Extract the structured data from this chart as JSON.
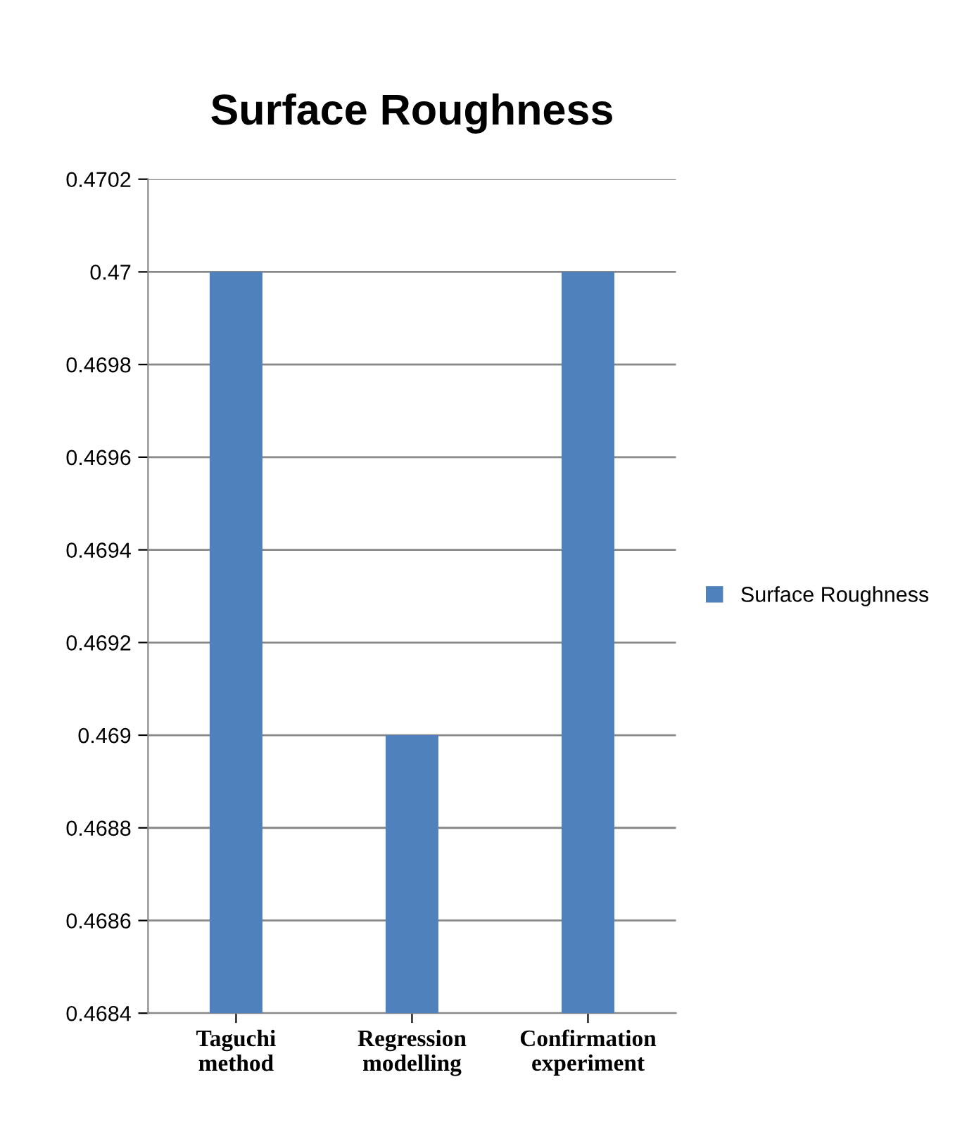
{
  "chart_data": {
    "type": "bar",
    "title": "Surface Roughness",
    "categories": [
      "Taguchi method",
      "Regression modelling",
      "Confirmation experiment"
    ],
    "series": [
      {
        "name": "Surface Roughness",
        "color": "#4f81bd",
        "values": [
          0.47,
          0.469,
          0.47
        ]
      }
    ],
    "ylim": [
      0.4684,
      0.4702
    ],
    "yticks": [
      0.4684,
      0.4686,
      0.4688,
      0.469,
      0.4692,
      0.4694,
      0.4696,
      0.4698,
      0.47,
      0.4702
    ],
    "grid": "y",
    "legend": "right"
  }
}
